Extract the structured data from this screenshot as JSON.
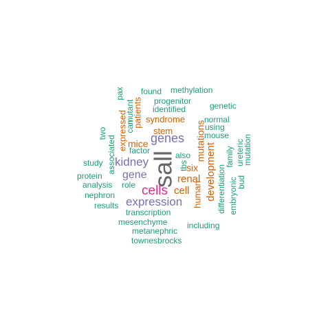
{
  "colors": {
    "teal": "#1b9e77",
    "orange": "#d95f02",
    "purple": "#7570b3",
    "magenta": "#e7298a",
    "gray": "#666666"
  },
  "words": [
    {
      "text": "sall",
      "color": "gray"
    },
    {
      "text": "cells",
      "color": "magenta"
    },
    {
      "text": "expression",
      "color": "purple"
    },
    {
      "text": "genes",
      "color": "purple"
    },
    {
      "text": "kidney",
      "color": "purple"
    },
    {
      "text": "gene",
      "color": "purple"
    },
    {
      "text": "renal",
      "color": "orange"
    },
    {
      "text": "cell",
      "color": "orange"
    },
    {
      "text": "six",
      "color": "orange"
    },
    {
      "text": "mice",
      "color": "orange"
    },
    {
      "text": "stem",
      "color": "orange"
    },
    {
      "text": "syndrome",
      "color": "orange"
    },
    {
      "text": "development",
      "color": "orange"
    },
    {
      "text": "mutations",
      "color": "orange"
    },
    {
      "text": "expressed",
      "color": "orange"
    },
    {
      "text": "patients",
      "color": "orange"
    },
    {
      "text": "human",
      "color": "orange"
    },
    {
      "text": "found",
      "color": "teal"
    },
    {
      "text": "methylation",
      "color": "teal"
    },
    {
      "text": "progenitor",
      "color": "teal"
    },
    {
      "text": "identified",
      "color": "teal"
    },
    {
      "text": "genetic",
      "color": "teal"
    },
    {
      "text": "normal",
      "color": "teal"
    },
    {
      "text": "using",
      "color": "teal"
    },
    {
      "text": "mouse",
      "color": "teal"
    },
    {
      "text": "factor",
      "color": "teal"
    },
    {
      "text": "also",
      "color": "teal"
    },
    {
      "text": "tbs",
      "color": "teal"
    },
    {
      "text": "study",
      "color": "teal"
    },
    {
      "text": "protein",
      "color": "teal"
    },
    {
      "text": "analysis",
      "color": "teal"
    },
    {
      "text": "role",
      "color": "teal"
    },
    {
      "text": "nephron",
      "color": "teal"
    },
    {
      "text": "results",
      "color": "teal"
    },
    {
      "text": "transcription",
      "color": "teal"
    },
    {
      "text": "mesenchyme",
      "color": "teal"
    },
    {
      "text": "including",
      "color": "teal"
    },
    {
      "text": "metanephric",
      "color": "teal"
    },
    {
      "text": "townesbrocks",
      "color": "teal"
    },
    {
      "text": "pax",
      "color": "teal"
    },
    {
      "text": "mutant",
      "color": "teal"
    },
    {
      "text": "can",
      "color": "teal"
    },
    {
      "text": "two",
      "color": "teal"
    },
    {
      "text": "associated",
      "color": "teal"
    },
    {
      "text": "family",
      "color": "teal"
    },
    {
      "text": "ureteric",
      "color": "teal"
    },
    {
      "text": "mutation",
      "color": "teal"
    },
    {
      "text": "bud",
      "color": "teal"
    },
    {
      "text": "embryonic",
      "color": "teal"
    },
    {
      "text": "differentiation",
      "color": "teal"
    }
  ]
}
